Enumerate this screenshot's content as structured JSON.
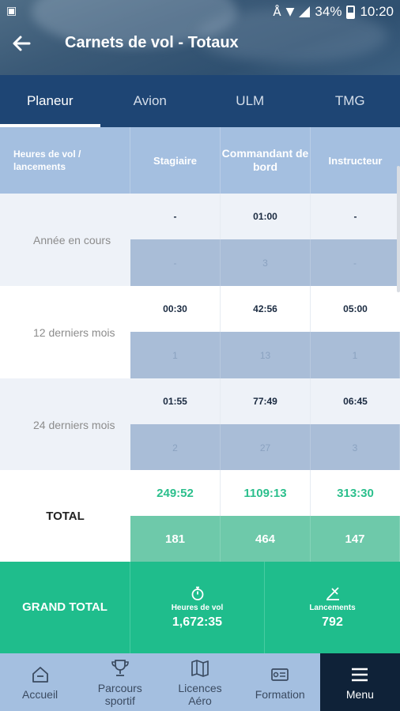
{
  "status": {
    "battery": "34%",
    "time": "10:20"
  },
  "header": {
    "title": "Carnets de vol - Totaux"
  },
  "tabs": [
    {
      "label": "Planeur",
      "active": true
    },
    {
      "label": "Avion"
    },
    {
      "label": "ULM"
    },
    {
      "label": "TMG"
    }
  ],
  "table": {
    "headers": [
      "Heures de vol / lancements",
      "Stagiaire",
      "Commandant de bord",
      "Instructeur"
    ],
    "rows": [
      {
        "label": "Année en cours",
        "hours": [
          "-",
          "01:00",
          "-"
        ],
        "launches": [
          "-",
          "3",
          "-"
        ]
      },
      {
        "label": "12 derniers mois",
        "hours": [
          "00:30",
          "42:56",
          "05:00"
        ],
        "launches": [
          "1",
          "13",
          "1"
        ]
      },
      {
        "label": "24 derniers mois",
        "hours": [
          "01:55",
          "77:49",
          "06:45"
        ],
        "launches": [
          "2",
          "27",
          "3"
        ]
      }
    ],
    "total": {
      "label": "TOTAL",
      "hours": [
        "249:52",
        "1109:13",
        "313:30"
      ],
      "launches": [
        "181",
        "464",
        "147"
      ]
    }
  },
  "grand_total": {
    "label": "GRAND TOTAL",
    "hours_label": "Heures de vol",
    "hours_value": "1,672:35",
    "launches_label": "Lancements",
    "launches_value": "792"
  },
  "nav": [
    {
      "label": "Accueil",
      "icon": "home-icon"
    },
    {
      "label": "Parcours sportif",
      "icon": "trophy-icon"
    },
    {
      "label": "Licences Aéro",
      "icon": "map-icon"
    },
    {
      "label": "Formation",
      "icon": "certificate-icon"
    },
    {
      "label": "Menu",
      "icon": "menu-icon",
      "active": true
    }
  ]
}
